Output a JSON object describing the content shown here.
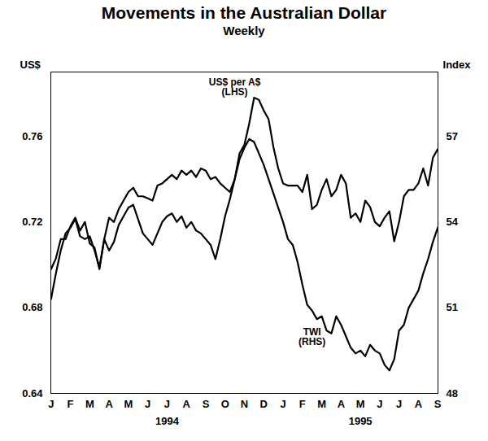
{
  "chart_data": {
    "type": "line",
    "title": "Movements in the Australian Dollar",
    "subtitle": "Weekly",
    "ylabel": "US$",
    "y2label": "Index",
    "categories": [
      "J",
      null,
      null,
      null,
      "F",
      null,
      null,
      null,
      "M",
      null,
      null,
      null,
      "A",
      null,
      null,
      null,
      "M",
      null,
      null,
      null,
      "J",
      null,
      null,
      null,
      "J",
      null,
      null,
      null,
      "A",
      null,
      null,
      null,
      "S",
      null,
      null,
      null,
      "O",
      null,
      null,
      null,
      "N",
      null,
      null,
      null,
      "D",
      null,
      null,
      null,
      "J",
      null,
      null,
      null,
      "F",
      null,
      null,
      null,
      "M",
      null,
      null,
      null,
      "A",
      null,
      null,
      null,
      "M",
      null,
      null,
      null,
      "J",
      null,
      null,
      null,
      "J",
      null,
      null,
      null,
      "A",
      null,
      null,
      null,
      "S"
    ],
    "x_group_labels": [
      {
        "label": "1994",
        "from": 0,
        "to": 47
      },
      {
        "label": "1995",
        "from": 48,
        "to": 80
      }
    ],
    "series": [
      {
        "name": "US$ per A$ (LHS)",
        "color": "#000000",
        "values": [
          0.698,
          0.703,
          0.712,
          0.712,
          0.718,
          0.722,
          0.716,
          0.72,
          0.71,
          0.708,
          0.698,
          0.712,
          0.722,
          0.72,
          0.726,
          0.73,
          0.734,
          0.736,
          0.732,
          0.732,
          0.731,
          0.73,
          0.737,
          0.738,
          0.74,
          0.742,
          0.74,
          0.744,
          0.742,
          0.744,
          0.741,
          0.745,
          0.744,
          0.74,
          0.741,
          0.738,
          0.736,
          0.734,
          0.74,
          0.752,
          0.756,
          0.766,
          0.778,
          0.777,
          0.772,
          0.768,
          0.755,
          0.745,
          0.738,
          0.737,
          0.737,
          0.737,
          0.734,
          0.742,
          0.726,
          0.728,
          0.735,
          0.74,
          0.732,
          0.735,
          0.742,
          0.738,
          0.722,
          0.724,
          0.72,
          0.73,
          0.727,
          0.72,
          0.718,
          0.722,
          0.725,
          0.711,
          0.72,
          0.732,
          0.735,
          0.735,
          0.738,
          0.745,
          0.737,
          0.75,
          0.754
        ]
      },
      {
        "name": "TWI (RHS)",
        "color": "#000000",
        "axis": "y2",
        "values": [
          51.3,
          52.2,
          53.0,
          53.6,
          53.8,
          54.1,
          53.5,
          53.4,
          53.5,
          53.0,
          52.4,
          53.4,
          53.0,
          53.3,
          53.9,
          54.2,
          54.5,
          54.6,
          54.1,
          53.6,
          53.4,
          53.2,
          53.6,
          54.0,
          54.2,
          54.3,
          54.0,
          54.2,
          53.8,
          54.0,
          53.7,
          53.6,
          53.4,
          53.2,
          52.7,
          53.4,
          54.2,
          54.8,
          55.5,
          56.2,
          56.6,
          56.9,
          56.8,
          56.4,
          56.0,
          55.5,
          55.0,
          54.5,
          54.0,
          53.4,
          53.2,
          52.6,
          51.8,
          51.1,
          50.9,
          50.6,
          50.7,
          50.2,
          50.1,
          50.7,
          50.4,
          50.0,
          49.6,
          49.4,
          49.5,
          49.3,
          49.7,
          49.5,
          49.4,
          49.0,
          48.8,
          49.2,
          50.2,
          50.4,
          51.0,
          51.3,
          51.6,
          52.2,
          52.7,
          53.3,
          53.8
        ]
      }
    ],
    "ylim": [
      0.64,
      0.79
    ],
    "yticks": [
      0.64,
      0.68,
      0.72,
      0.76
    ],
    "y2lim": [
      48,
      59.25
    ],
    "y2ticks": [
      48,
      51,
      54,
      57
    ],
    "grid": false
  }
}
